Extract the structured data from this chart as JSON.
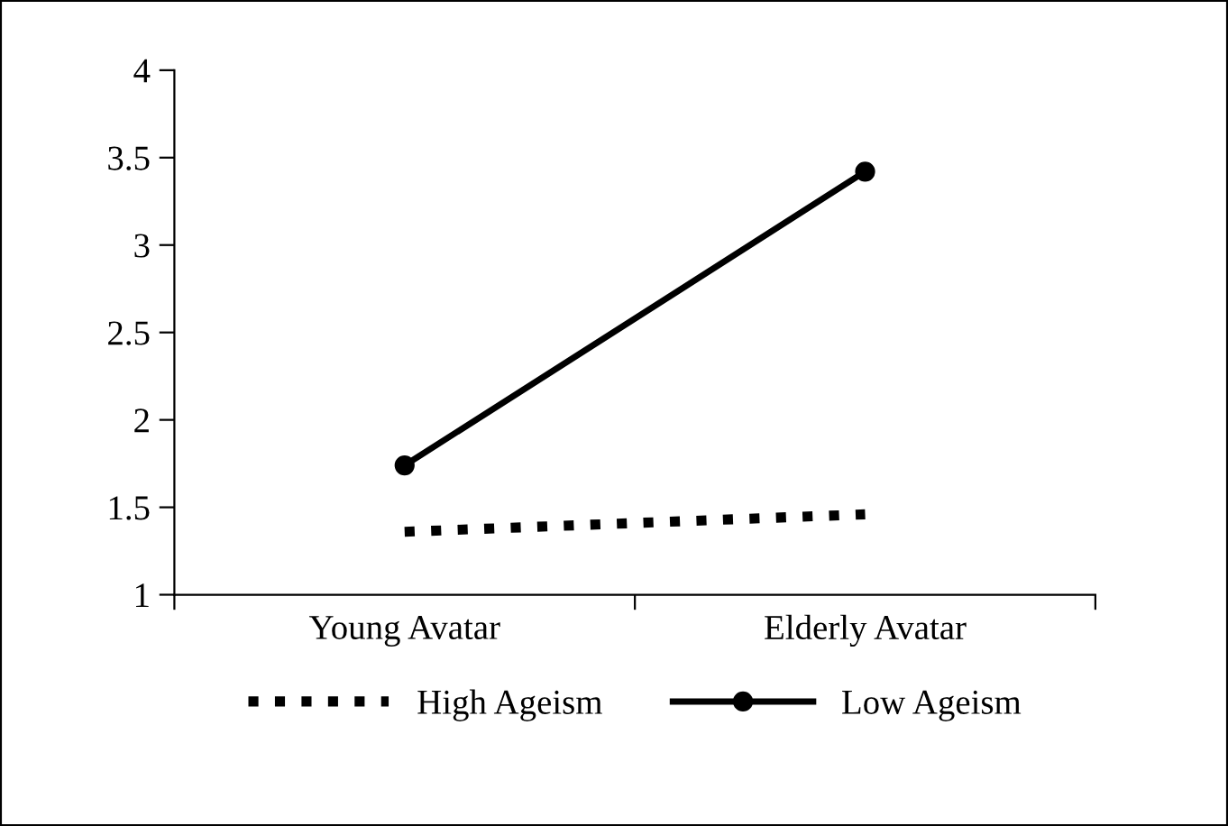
{
  "chart_data": {
    "type": "line",
    "categories": [
      "Young Avatar",
      "Elderly Avatar"
    ],
    "series": [
      {
        "name": "High Ageism",
        "color": "#000000",
        "values": [
          1.36,
          1.46
        ],
        "line_style": "dotted",
        "marker": "none"
      },
      {
        "name": "Low Ageism",
        "color": "#000000",
        "values": [
          1.74,
          3.42
        ],
        "line_style": "solid",
        "marker": "circle"
      }
    ],
    "ylim": [
      1,
      4
    ],
    "yticks": [
      1,
      1.5,
      2,
      2.5,
      3,
      3.5,
      4
    ],
    "grid": false,
    "legend": "bottom"
  }
}
